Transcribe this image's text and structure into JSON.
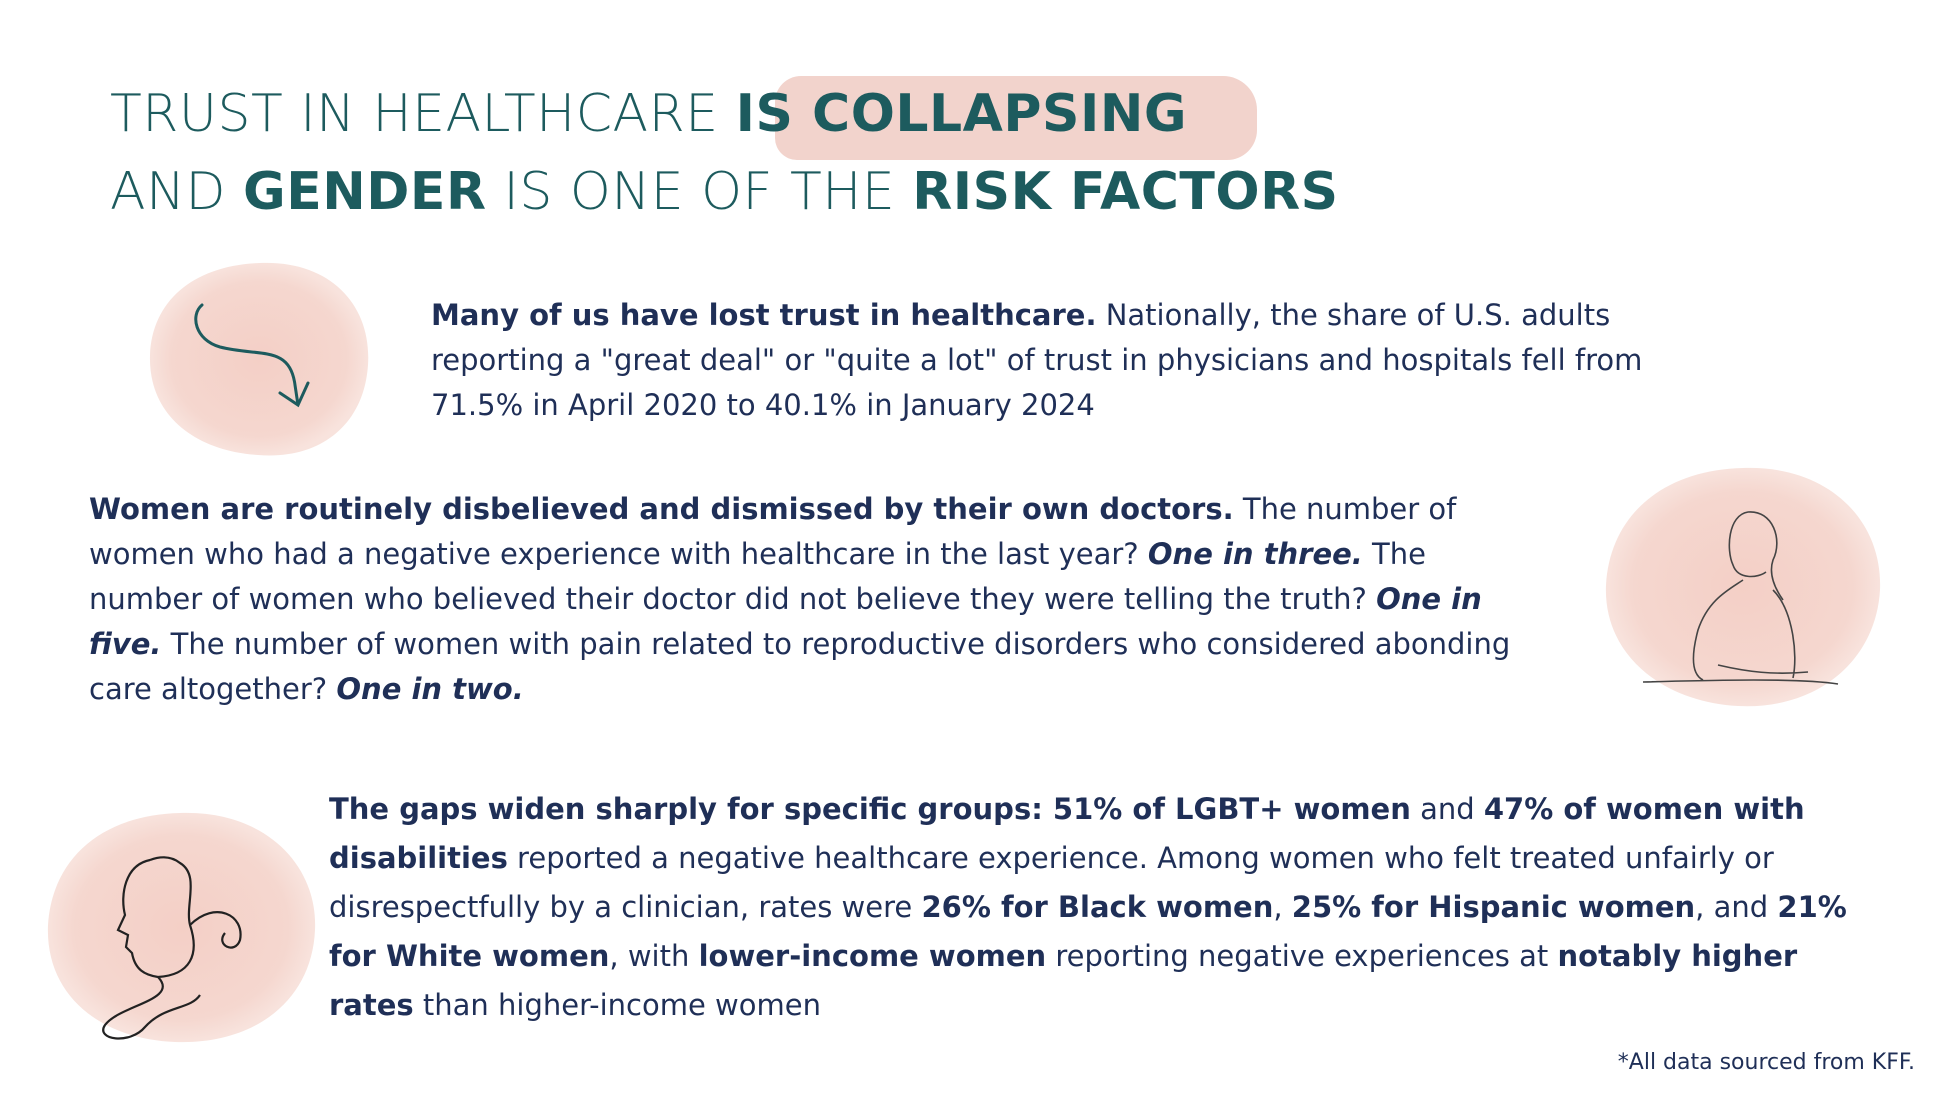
{
  "header": {
    "title_line1": [
      "TRUST IN HEALTHCARE ",
      "IS COLLAPSING"
    ],
    "title_line2": [
      "AND ",
      "GENDER",
      " IS ONE OF THE ",
      "RISK FACTORS"
    ]
  },
  "paragraphs": [
    [
      "Many of us have lost trust in healthcare.",
      " Nationally, the share of U.S. adults reporting a \"great deal\" or \"quite a lot\" of trust in physicians and hospitals fell from 71.5% in April 2020 to 40.1% in January 2024"
    ],
    [
      "Women are routinely disbelieved and dismissed by their own doctors.",
      " The number of women who had a negative experience with healthcare in the last year? ",
      "One in three.",
      " The number of women who believed their doctor did not believe they were telling the truth? ",
      "One in five.",
      " The number of women with pain related to reproductive disorders who considered abonding care altogether?  ",
      "One in two."
    ],
    [
      "The gaps widen sharply for specific groups: 51% of LGBT+ women",
      " and ",
      "47% of women with disabilities",
      " reported a negative healthcare experience. Among women who felt treated unfairly or disrespectfully by a clinician, rates were ",
      "26% for Black women",
      ", ",
      "25% for Hispanic women",
      ", and ",
      "21% for White women",
      ", with ",
      "lower-income women",
      " reporting negative experiences at ",
      "notably higher rates",
      " than higher-income women"
    ]
  ],
  "footnote": "*All data sourced from KFF."
}
